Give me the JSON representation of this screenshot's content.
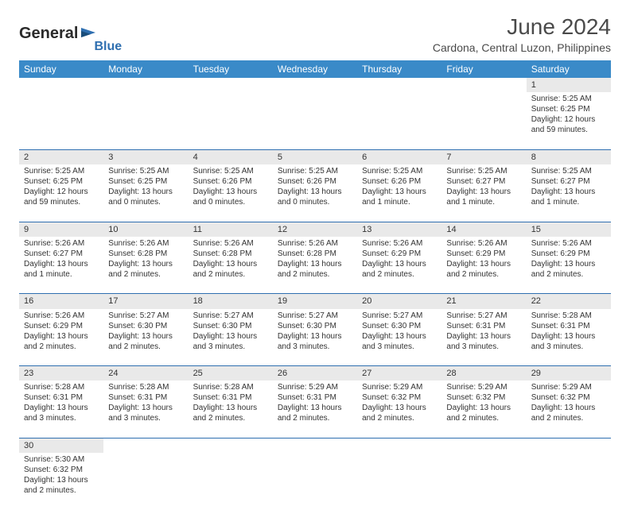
{
  "logo": {
    "general": "General",
    "blue": "Blue"
  },
  "title": "June 2024",
  "location": "Cardona, Central Luzon, Philippines",
  "colors": {
    "header_bg": "#3a8ac8",
    "header_text": "#ffffff",
    "daynum_bg": "#e9e9e9",
    "row_divider": "#2f6fb0",
    "text": "#333333",
    "logo_blue": "#2f6fb0"
  },
  "day_headers": [
    "Sunday",
    "Monday",
    "Tuesday",
    "Wednesday",
    "Thursday",
    "Friday",
    "Saturday"
  ],
  "weeks": [
    [
      null,
      null,
      null,
      null,
      null,
      null,
      {
        "n": "1",
        "sr": "5:25 AM",
        "ss": "6:25 PM",
        "dl": "12 hours and 59 minutes."
      }
    ],
    [
      {
        "n": "2",
        "sr": "5:25 AM",
        "ss": "6:25 PM",
        "dl": "12 hours and 59 minutes."
      },
      {
        "n": "3",
        "sr": "5:25 AM",
        "ss": "6:25 PM",
        "dl": "13 hours and 0 minutes."
      },
      {
        "n": "4",
        "sr": "5:25 AM",
        "ss": "6:26 PM",
        "dl": "13 hours and 0 minutes."
      },
      {
        "n": "5",
        "sr": "5:25 AM",
        "ss": "6:26 PM",
        "dl": "13 hours and 0 minutes."
      },
      {
        "n": "6",
        "sr": "5:25 AM",
        "ss": "6:26 PM",
        "dl": "13 hours and 1 minute."
      },
      {
        "n": "7",
        "sr": "5:25 AM",
        "ss": "6:27 PM",
        "dl": "13 hours and 1 minute."
      },
      {
        "n": "8",
        "sr": "5:25 AM",
        "ss": "6:27 PM",
        "dl": "13 hours and 1 minute."
      }
    ],
    [
      {
        "n": "9",
        "sr": "5:26 AM",
        "ss": "6:27 PM",
        "dl": "13 hours and 1 minute."
      },
      {
        "n": "10",
        "sr": "5:26 AM",
        "ss": "6:28 PM",
        "dl": "13 hours and 2 minutes."
      },
      {
        "n": "11",
        "sr": "5:26 AM",
        "ss": "6:28 PM",
        "dl": "13 hours and 2 minutes."
      },
      {
        "n": "12",
        "sr": "5:26 AM",
        "ss": "6:28 PM",
        "dl": "13 hours and 2 minutes."
      },
      {
        "n": "13",
        "sr": "5:26 AM",
        "ss": "6:29 PM",
        "dl": "13 hours and 2 minutes."
      },
      {
        "n": "14",
        "sr": "5:26 AM",
        "ss": "6:29 PM",
        "dl": "13 hours and 2 minutes."
      },
      {
        "n": "15",
        "sr": "5:26 AM",
        "ss": "6:29 PM",
        "dl": "13 hours and 2 minutes."
      }
    ],
    [
      {
        "n": "16",
        "sr": "5:26 AM",
        "ss": "6:29 PM",
        "dl": "13 hours and 2 minutes."
      },
      {
        "n": "17",
        "sr": "5:27 AM",
        "ss": "6:30 PM",
        "dl": "13 hours and 2 minutes."
      },
      {
        "n": "18",
        "sr": "5:27 AM",
        "ss": "6:30 PM",
        "dl": "13 hours and 3 minutes."
      },
      {
        "n": "19",
        "sr": "5:27 AM",
        "ss": "6:30 PM",
        "dl": "13 hours and 3 minutes."
      },
      {
        "n": "20",
        "sr": "5:27 AM",
        "ss": "6:30 PM",
        "dl": "13 hours and 3 minutes."
      },
      {
        "n": "21",
        "sr": "5:27 AM",
        "ss": "6:31 PM",
        "dl": "13 hours and 3 minutes."
      },
      {
        "n": "22",
        "sr": "5:28 AM",
        "ss": "6:31 PM",
        "dl": "13 hours and 3 minutes."
      }
    ],
    [
      {
        "n": "23",
        "sr": "5:28 AM",
        "ss": "6:31 PM",
        "dl": "13 hours and 3 minutes."
      },
      {
        "n": "24",
        "sr": "5:28 AM",
        "ss": "6:31 PM",
        "dl": "13 hours and 3 minutes."
      },
      {
        "n": "25",
        "sr": "5:28 AM",
        "ss": "6:31 PM",
        "dl": "13 hours and 2 minutes."
      },
      {
        "n": "26",
        "sr": "5:29 AM",
        "ss": "6:31 PM",
        "dl": "13 hours and 2 minutes."
      },
      {
        "n": "27",
        "sr": "5:29 AM",
        "ss": "6:32 PM",
        "dl": "13 hours and 2 minutes."
      },
      {
        "n": "28",
        "sr": "5:29 AM",
        "ss": "6:32 PM",
        "dl": "13 hours and 2 minutes."
      },
      {
        "n": "29",
        "sr": "5:29 AM",
        "ss": "6:32 PM",
        "dl": "13 hours and 2 minutes."
      }
    ],
    [
      {
        "n": "30",
        "sr": "5:30 AM",
        "ss": "6:32 PM",
        "dl": "13 hours and 2 minutes."
      },
      null,
      null,
      null,
      null,
      null,
      null
    ]
  ],
  "labels": {
    "sunrise": "Sunrise:",
    "sunset": "Sunset:",
    "daylight": "Daylight:"
  }
}
